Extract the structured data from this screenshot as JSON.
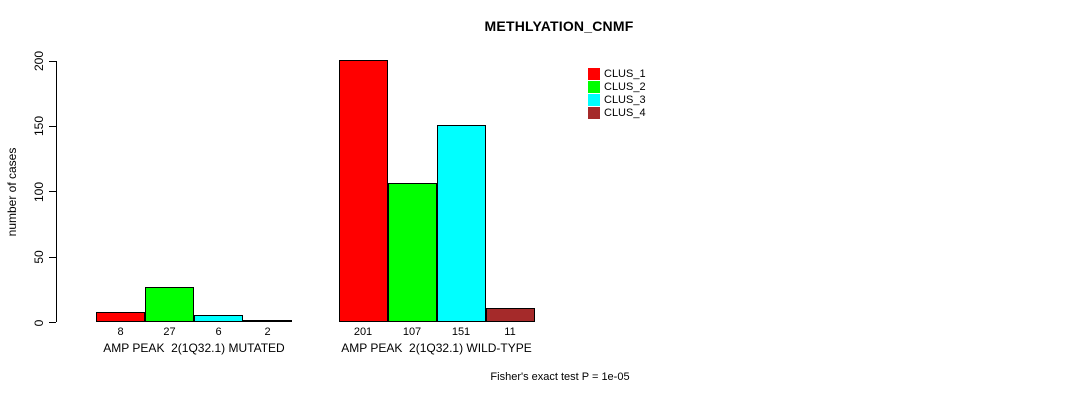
{
  "chart_data": {
    "type": "bar",
    "title": "METHLYATION_CNMF",
    "ylabel": "number of cases",
    "xlabel": "",
    "ylim": [
      0,
      200
    ],
    "yticks": [
      0,
      50,
      100,
      150,
      200
    ],
    "categories": [
      "AMP PEAK  2(1Q32.1) MUTATED",
      "AMP PEAK  2(1Q32.1) WILD-TYPE"
    ],
    "series": [
      {
        "name": "CLUS_1",
        "color": "#FF0000",
        "values": [
          8,
          201
        ]
      },
      {
        "name": "CLUS_2",
        "color": "#00FF00",
        "values": [
          27,
          107
        ]
      },
      {
        "name": "CLUS_3",
        "color": "#00FFFF",
        "values": [
          6,
          151
        ]
      },
      {
        "name": "CLUS_4",
        "color": "#A52A2A",
        "values": [
          2,
          11
        ]
      }
    ],
    "show_value_labels": true,
    "legend_position": "top-right",
    "grid": false,
    "background": "#FFFFFF",
    "annotation": "Fisher's exact test P = 1e-05"
  }
}
